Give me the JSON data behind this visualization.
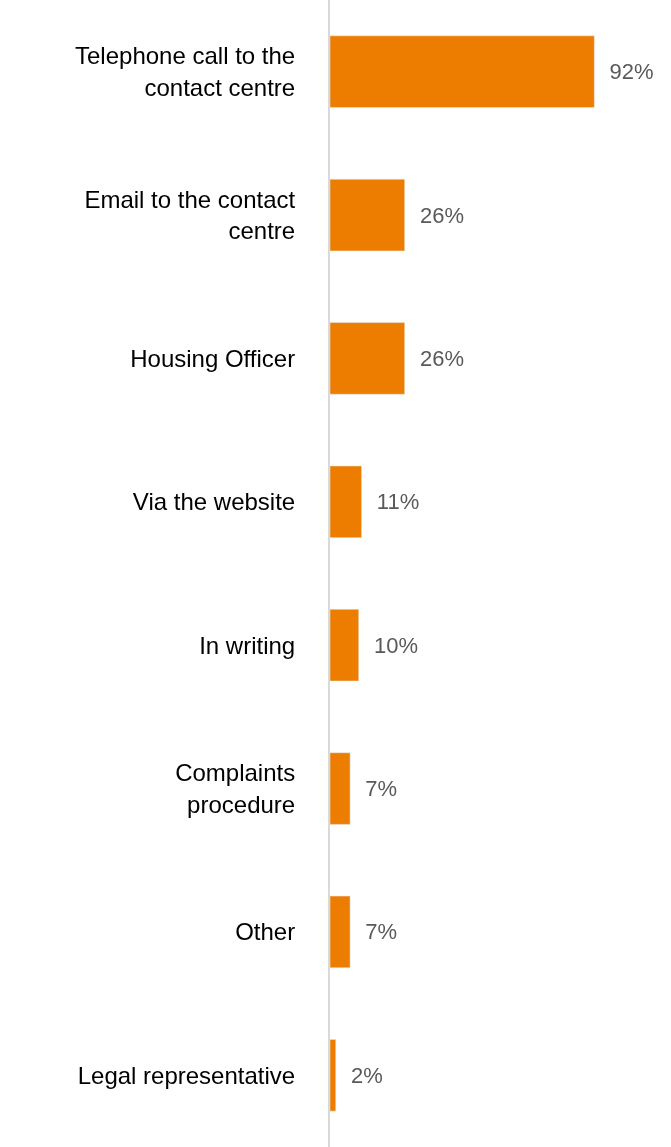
{
  "chart_data": {
    "type": "bar",
    "orientation": "horizontal",
    "categories": [
      "Telephone call to the\ncontact centre",
      "Email to the contact\ncentre",
      "Housing Officer",
      "Via the website",
      "In writing",
      "Complaints\nprocedure",
      "Other",
      "Legal representative"
    ],
    "values": [
      92,
      26,
      26,
      11,
      10,
      7,
      7,
      2
    ],
    "value_labels": [
      "92%",
      "26%",
      "26%",
      "11%",
      "10%",
      "7%",
      "7%",
      "2%"
    ],
    "color": "#ed7d00",
    "legend": false
  }
}
